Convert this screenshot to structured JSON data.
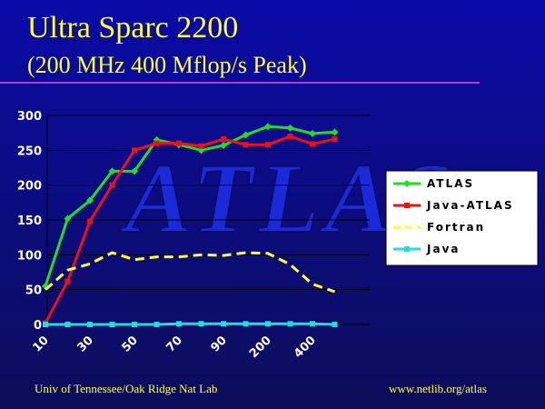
{
  "slide": {
    "title_line1": "Ultra Sparc 2200",
    "title_line2": "(200 MHz 400 Mflop/s Peak)",
    "footer_left": "Univ of Tennessee/Oak Ridge Nat Lab",
    "footer_right": "www.netlib.org/atlas",
    "watermark": "ATLAS",
    "colors": {
      "title": "#ffff33",
      "rule": "#b43cc8",
      "background": "#0a0aa8"
    }
  },
  "chart_data": {
    "type": "line",
    "title": "",
    "xlabel": "",
    "ylabel": "",
    "ylim": [
      0,
      300
    ],
    "yticks": [
      0,
      50,
      100,
      150,
      200,
      250,
      300
    ],
    "x_count": 16,
    "x_tick_labels": [
      {
        "index": 0,
        "label": "10"
      },
      {
        "index": 2,
        "label": "30"
      },
      {
        "index": 4,
        "label": "50"
      },
      {
        "index": 6,
        "label": "70"
      },
      {
        "index": 8,
        "label": "90"
      },
      {
        "index": 10,
        "label": "200"
      },
      {
        "index": 12,
        "label": "400"
      }
    ],
    "grid": true,
    "legend_position": "right",
    "series": [
      {
        "name": "ATLAS",
        "color": "#22dd22",
        "dashed": false,
        "marker": "diamond",
        "values": [
          55,
          152,
          178,
          220,
          220,
          265,
          258,
          250,
          257,
          272,
          284,
          282,
          274,
          276
        ]
      },
      {
        "name": "Java-ATLAS",
        "color": "#ee1111",
        "dashed": false,
        "marker": "square",
        "values": [
          2,
          62,
          148,
          200,
          250,
          260,
          260,
          256,
          266,
          258,
          258,
          270,
          259,
          266
        ]
      },
      {
        "name": "Fortran",
        "color": "#ffff33",
        "dashed": true,
        "marker": "none",
        "values": [
          50,
          78,
          87,
          103,
          93,
          97,
          97,
          100,
          99,
          103,
          102,
          86,
          58,
          47
        ]
      },
      {
        "name": "Java",
        "color": "#22dddd",
        "dashed": false,
        "marker": "square",
        "values": [
          0,
          0,
          0,
          0,
          0,
          0,
          1,
          1,
          1,
          1,
          1,
          1,
          1,
          0
        ]
      }
    ]
  }
}
